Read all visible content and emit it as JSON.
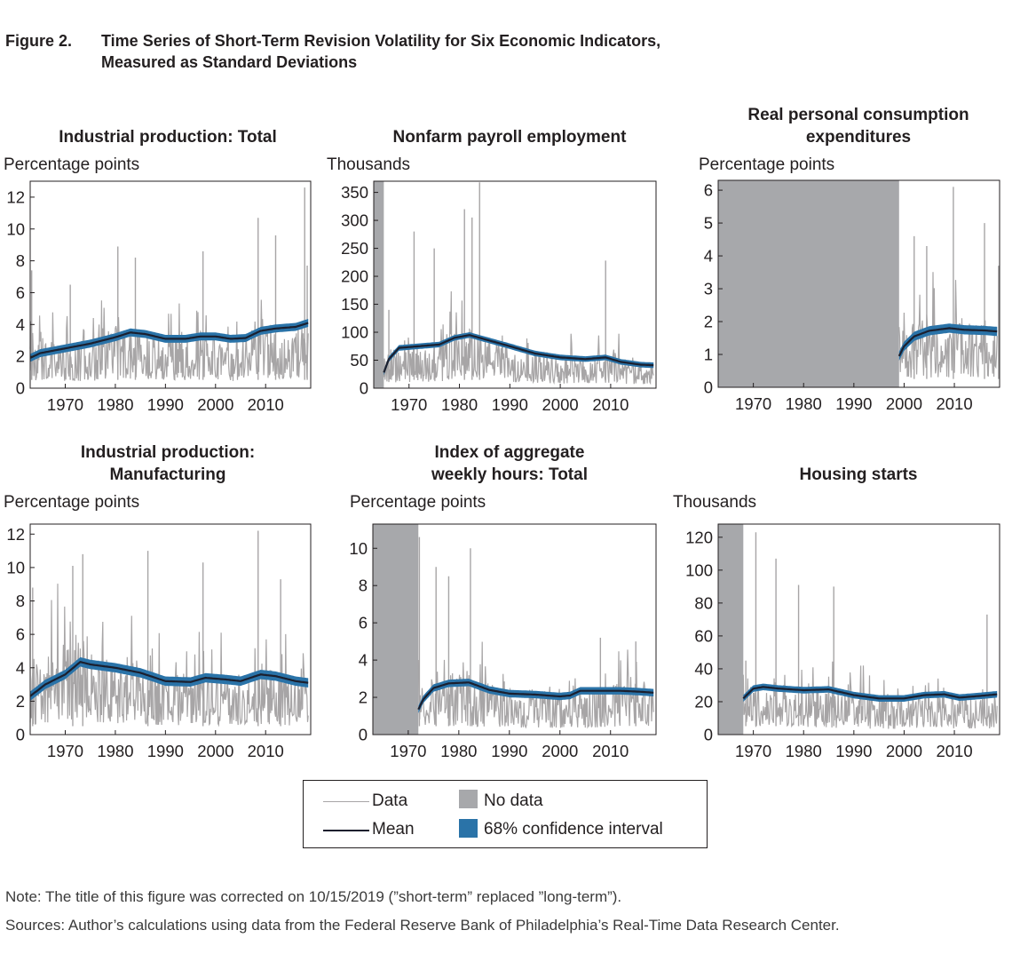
{
  "figure": {
    "number": "Figure 2.",
    "title_line1": "Time Series of Short-Term Revision Volatility for Six Economic Indicators,",
    "title_line2": "Measured as Standard Deviations"
  },
  "legend": {
    "data": "Data",
    "mean": "Mean",
    "no_data": "No data",
    "ci": "68% confidence interval",
    "data_color": "#a7a5a6",
    "mean_color": "#1b1f2e",
    "no_data_color": "#a7a8ab",
    "ci_color": "#2a73a8"
  },
  "notes": {
    "note": "Note: The title of this figure was corrected on 10/15/2019 (”short-term” replaced ”long-term”).",
    "sources": "Sources: Author’s calculations using data from the Federal Reserve Bank of Philadelphia’s Real-Time Data Research Center."
  },
  "chart_data": [
    {
      "type": "line",
      "title_line1": "Industrial production: Total",
      "title_line2": "",
      "ylabel": "Percentage points",
      "xlim": [
        1963,
        2019
      ],
      "ylim": [
        0,
        13
      ],
      "yticks": [
        0,
        2,
        4,
        6,
        8,
        10,
        12
      ],
      "xticks": [
        1970,
        1980,
        1990,
        2000,
        2010
      ],
      "no_data_until": null,
      "data_start": 1963,
      "mean": [
        [
          1963,
          1.9
        ],
        [
          1965,
          2.2
        ],
        [
          1970,
          2.5
        ],
        [
          1975,
          2.8
        ],
        [
          1980,
          3.2
        ],
        [
          1983,
          3.5
        ],
        [
          1986,
          3.4
        ],
        [
          1990,
          3.1
        ],
        [
          1994,
          3.1
        ],
        [
          1997,
          3.25
        ],
        [
          2000,
          3.25
        ],
        [
          2003,
          3.1
        ],
        [
          2006,
          3.15
        ],
        [
          2009,
          3.6
        ],
        [
          2012,
          3.75
        ],
        [
          2016,
          3.85
        ],
        [
          2018.5,
          4.1
        ]
      ],
      "ci_halfwidth": 0.25,
      "data_band": [
        [
          1963,
          3.0
        ],
        [
          1975,
          3.0
        ],
        [
          1980,
          4.0
        ],
        [
          1985,
          3.4
        ],
        [
          1995,
          3.2
        ],
        [
          2005,
          3.0
        ],
        [
          2010,
          4.0
        ],
        [
          2018.5,
          4.0
        ]
      ],
      "spikes": [
        [
          1963.3,
          7.4
        ],
        [
          1971,
          6.5
        ],
        [
          1980.5,
          8.9
        ],
        [
          1984,
          8.2
        ],
        [
          1997.5,
          8.6
        ],
        [
          2008.5,
          10.7
        ],
        [
          2012,
          9.6
        ],
        [
          2017.8,
          12.6
        ],
        [
          2018.3,
          7.7
        ]
      ]
    },
    {
      "type": "line",
      "title_line1": "Nonfarm payroll employment",
      "title_line2": "",
      "ylabel": "Thousands",
      "xlim": [
        1963,
        2019
      ],
      "ylim": [
        0,
        370
      ],
      "yticks": [
        0,
        50,
        100,
        150,
        200,
        250,
        300,
        350
      ],
      "xticks": [
        1970,
        1980,
        1990,
        2000,
        2010
      ],
      "no_data_until": 1965,
      "data_start": 1965,
      "mean": [
        [
          1965,
          28
        ],
        [
          1966,
          52
        ],
        [
          1968,
          72
        ],
        [
          1972,
          75
        ],
        [
          1976,
          78
        ],
        [
          1979,
          90
        ],
        [
          1982,
          95
        ],
        [
          1986,
          85
        ],
        [
          1990,
          75
        ],
        [
          1995,
          62
        ],
        [
          2000,
          55
        ],
        [
          2005,
          52
        ],
        [
          2009,
          55
        ],
        [
          2012,
          47
        ],
        [
          2016,
          42
        ],
        [
          2018.5,
          41
        ]
      ],
      "ci_halfwidth": 5,
      "data_band": [
        [
          1965,
          70
        ],
        [
          1975,
          75
        ],
        [
          1982,
          110
        ],
        [
          1990,
          75
        ],
        [
          2000,
          55
        ],
        [
          2010,
          55
        ],
        [
          2018.5,
          45
        ]
      ],
      "spikes": [
        [
          1966,
          140
        ],
        [
          1971,
          280
        ],
        [
          1975,
          250
        ],
        [
          1981,
          320
        ],
        [
          1982.5,
          305
        ],
        [
          1984,
          368
        ],
        [
          2009,
          228
        ]
      ]
    },
    {
      "type": "line",
      "title_line1": "Real personal consumption",
      "title_line2": "expenditures",
      "ylabel": "Percentage points",
      "xlim": [
        1963,
        2019
      ],
      "ylim": [
        0,
        6.3
      ],
      "yticks": [
        0,
        1,
        2,
        3,
        4,
        5,
        6
      ],
      "xticks": [
        1970,
        1980,
        1990,
        2000,
        2010
      ],
      "no_data_until": 1999,
      "data_start": 1999,
      "mean": [
        [
          1999,
          0.95
        ],
        [
          2000,
          1.25
        ],
        [
          2002,
          1.55
        ],
        [
          2005,
          1.72
        ],
        [
          2009,
          1.8
        ],
        [
          2012,
          1.75
        ],
        [
          2016,
          1.73
        ],
        [
          2018.5,
          1.7
        ]
      ],
      "ci_halfwidth": 0.14,
      "data_band": [
        [
          1999,
          1.9
        ],
        [
          2005,
          2.0
        ],
        [
          2010,
          2.0
        ],
        [
          2018.5,
          1.9
        ]
      ],
      "spikes": [
        [
          2002,
          4.6
        ],
        [
          2004.5,
          4.3
        ],
        [
          2009.8,
          6.1
        ],
        [
          2016,
          5.0
        ],
        [
          2018.8,
          3.7
        ]
      ]
    },
    {
      "type": "line",
      "title_line1": "Industrial production:",
      "title_line2": "Manufacturing",
      "ylabel": "Percentage points",
      "xlim": [
        1963,
        2019
      ],
      "ylim": [
        0,
        12.6
      ],
      "yticks": [
        0,
        2,
        4,
        6,
        8,
        10,
        12
      ],
      "xticks": [
        1970,
        1980,
        1990,
        2000,
        2010
      ],
      "no_data_until": null,
      "data_start": 1963,
      "mean": [
        [
          1963,
          2.3
        ],
        [
          1966,
          3.0
        ],
        [
          1970,
          3.6
        ],
        [
          1973,
          4.35
        ],
        [
          1975,
          4.2
        ],
        [
          1980,
          4.0
        ],
        [
          1985,
          3.7
        ],
        [
          1990,
          3.2
        ],
        [
          1995,
          3.15
        ],
        [
          1998,
          3.4
        ],
        [
          2002,
          3.3
        ],
        [
          2005,
          3.2
        ],
        [
          2009,
          3.6
        ],
        [
          2012,
          3.5
        ],
        [
          2016,
          3.2
        ],
        [
          2018.5,
          3.1
        ]
      ],
      "ci_halfwidth": 0.28,
      "data_band": [
        [
          1963,
          4.0
        ],
        [
          1972,
          6.0
        ],
        [
          1976,
          5.0
        ],
        [
          1985,
          4.0
        ],
        [
          2000,
          3.5
        ],
        [
          2010,
          4.0
        ],
        [
          2018.5,
          3.2
        ]
      ],
      "spikes": [
        [
          1963.5,
          8.8
        ],
        [
          1971.5,
          10.1
        ],
        [
          1973.5,
          10.8
        ],
        [
          1986.5,
          11.0
        ],
        [
          1997.5,
          10.3
        ],
        [
          2008.5,
          12.2
        ],
        [
          2013,
          9.3
        ]
      ]
    },
    {
      "type": "line",
      "title_line1": "Index of aggregate",
      "title_line2": "weekly hours: Total",
      "ylabel": "Percentage points",
      "xlim": [
        1963,
        2019
      ],
      "ylim": [
        0,
        11.3
      ],
      "yticks": [
        0,
        2,
        4,
        6,
        8,
        10
      ],
      "xticks": [
        1970,
        1980,
        1990,
        2000,
        2010
      ],
      "no_data_until": 1972,
      "data_start": 1972,
      "mean": [
        [
          1972,
          1.35
        ],
        [
          1973,
          1.9
        ],
        [
          1975,
          2.5
        ],
        [
          1978,
          2.75
        ],
        [
          1982,
          2.8
        ],
        [
          1986,
          2.4
        ],
        [
          1990,
          2.2
        ],
        [
          1995,
          2.15
        ],
        [
          2000,
          2.05
        ],
        [
          2002,
          2.1
        ],
        [
          2004,
          2.35
        ],
        [
          2008,
          2.35
        ],
        [
          2012,
          2.35
        ],
        [
          2016,
          2.3
        ],
        [
          2018.5,
          2.25
        ]
      ],
      "ci_halfwidth": 0.2,
      "data_band": [
        [
          1972,
          2.6
        ],
        [
          1980,
          3.2
        ],
        [
          1990,
          2.5
        ],
        [
          2003,
          2.3
        ],
        [
          2010,
          2.8
        ],
        [
          2018.5,
          2.6
        ]
      ],
      "spikes": [
        [
          1972.2,
          10.6
        ],
        [
          1975.5,
          9.0
        ],
        [
          1978,
          8.5
        ],
        [
          1982.3,
          10.0
        ],
        [
          2008,
          5.2
        ],
        [
          2015,
          5.0
        ]
      ]
    },
    {
      "type": "line",
      "title_line1": "Housing starts",
      "title_line2": "",
      "ylabel": "Thousands",
      "xlim": [
        1963,
        2019
      ],
      "ylim": [
        0,
        128
      ],
      "yticks": [
        0,
        20,
        40,
        60,
        80,
        100,
        120
      ],
      "xticks": [
        1970,
        1980,
        1990,
        2000,
        2010
      ],
      "no_data_until": 1968,
      "data_start": 1968,
      "mean": [
        [
          1968,
          22
        ],
        [
          1970,
          28
        ],
        [
          1972,
          29
        ],
        [
          1975,
          28
        ],
        [
          1980,
          27
        ],
        [
          1985,
          27.5
        ],
        [
          1990,
          24
        ],
        [
          1995,
          22
        ],
        [
          2000,
          22
        ],
        [
          2004,
          24
        ],
        [
          2008,
          24.5
        ],
        [
          2011,
          22.5
        ],
        [
          2015,
          23.5
        ],
        [
          2018.5,
          24.5
        ]
      ],
      "ci_halfwidth": 2,
      "data_band": [
        [
          1968,
          30
        ],
        [
          1975,
          32
        ],
        [
          1985,
          27
        ],
        [
          2000,
          22
        ],
        [
          2010,
          25
        ],
        [
          2018.5,
          25
        ]
      ],
      "spikes": [
        [
          1968.5,
          45
        ],
        [
          1970.5,
          123
        ],
        [
          1974.5,
          107
        ],
        [
          1979,
          91
        ],
        [
          1986,
          90
        ],
        [
          2016.5,
          73
        ]
      ]
    }
  ]
}
